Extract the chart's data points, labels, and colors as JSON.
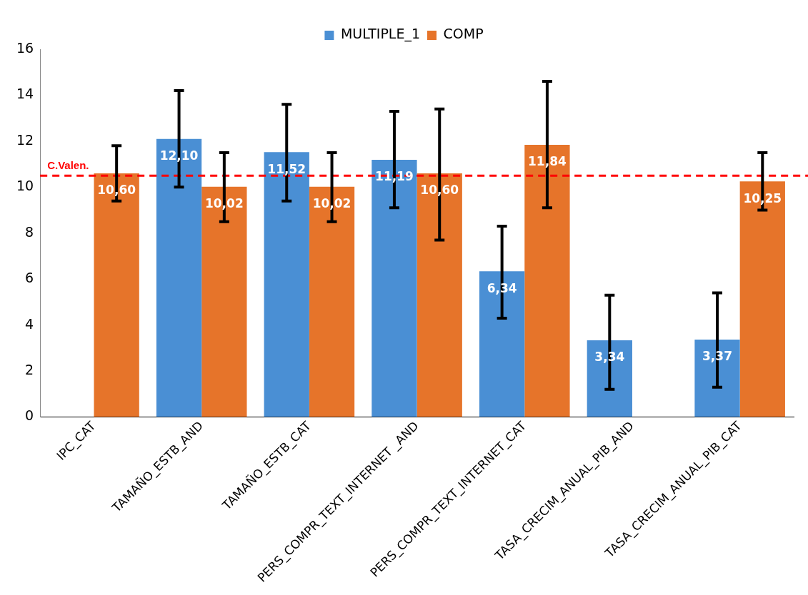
{
  "chart_data": {
    "type": "bar",
    "categories": [
      "IPC_CAT",
      "TAMAÑO_ESTB_AND",
      "TAMAÑO_ESTB_CAT",
      "PERS_COMPR_TEXT_INTERNET _AND",
      "PERS_COMPR_TEXT_INTERNET_CAT",
      "TASA_CRECIM_ANUAL_PIB_AND",
      "TASA_CRECIM_ANUAL_PIB_CAT"
    ],
    "series": [
      {
        "name": "MULTIPLE_1",
        "color": "#4a8fd4",
        "values": [
          0,
          12.1,
          11.52,
          11.19,
          6.34,
          3.34,
          3.37
        ],
        "value_labels": [
          null,
          "12,10",
          "11,52",
          "11,19",
          "6,34",
          "3,34",
          "3,37"
        ],
        "errors": [
          null,
          [
            10.0,
            14.2
          ],
          [
            9.4,
            13.6
          ],
          [
            9.1,
            13.3
          ],
          [
            4.3,
            8.3
          ],
          [
            1.2,
            5.3
          ],
          [
            1.3,
            5.4
          ]
        ]
      },
      {
        "name": "COMP",
        "color": "#e6742a",
        "values": [
          10.6,
          10.02,
          10.02,
          10.6,
          11.84,
          null,
          10.25
        ],
        "value_labels": [
          "10,60",
          "10,02",
          "10,02",
          "10,60",
          "11,84",
          null,
          "10,25"
        ],
        "errors": [
          [
            9.4,
            11.8
          ],
          [
            8.5,
            11.5
          ],
          [
            8.5,
            11.5
          ],
          [
            7.7,
            13.4
          ],
          [
            9.1,
            14.6
          ],
          null,
          [
            9.0,
            11.5
          ]
        ]
      }
    ],
    "ylim": [
      0,
      16
    ],
    "yticks": [
      0,
      2,
      4,
      6,
      8,
      10,
      12,
      14,
      16
    ],
    "grid": false,
    "legend": "top",
    "ref_lines": [
      {
        "axis": "y",
        "value": 10.5,
        "label": "C.Valen.",
        "color": "#ff0000",
        "line_style": "dashed"
      }
    ]
  }
}
